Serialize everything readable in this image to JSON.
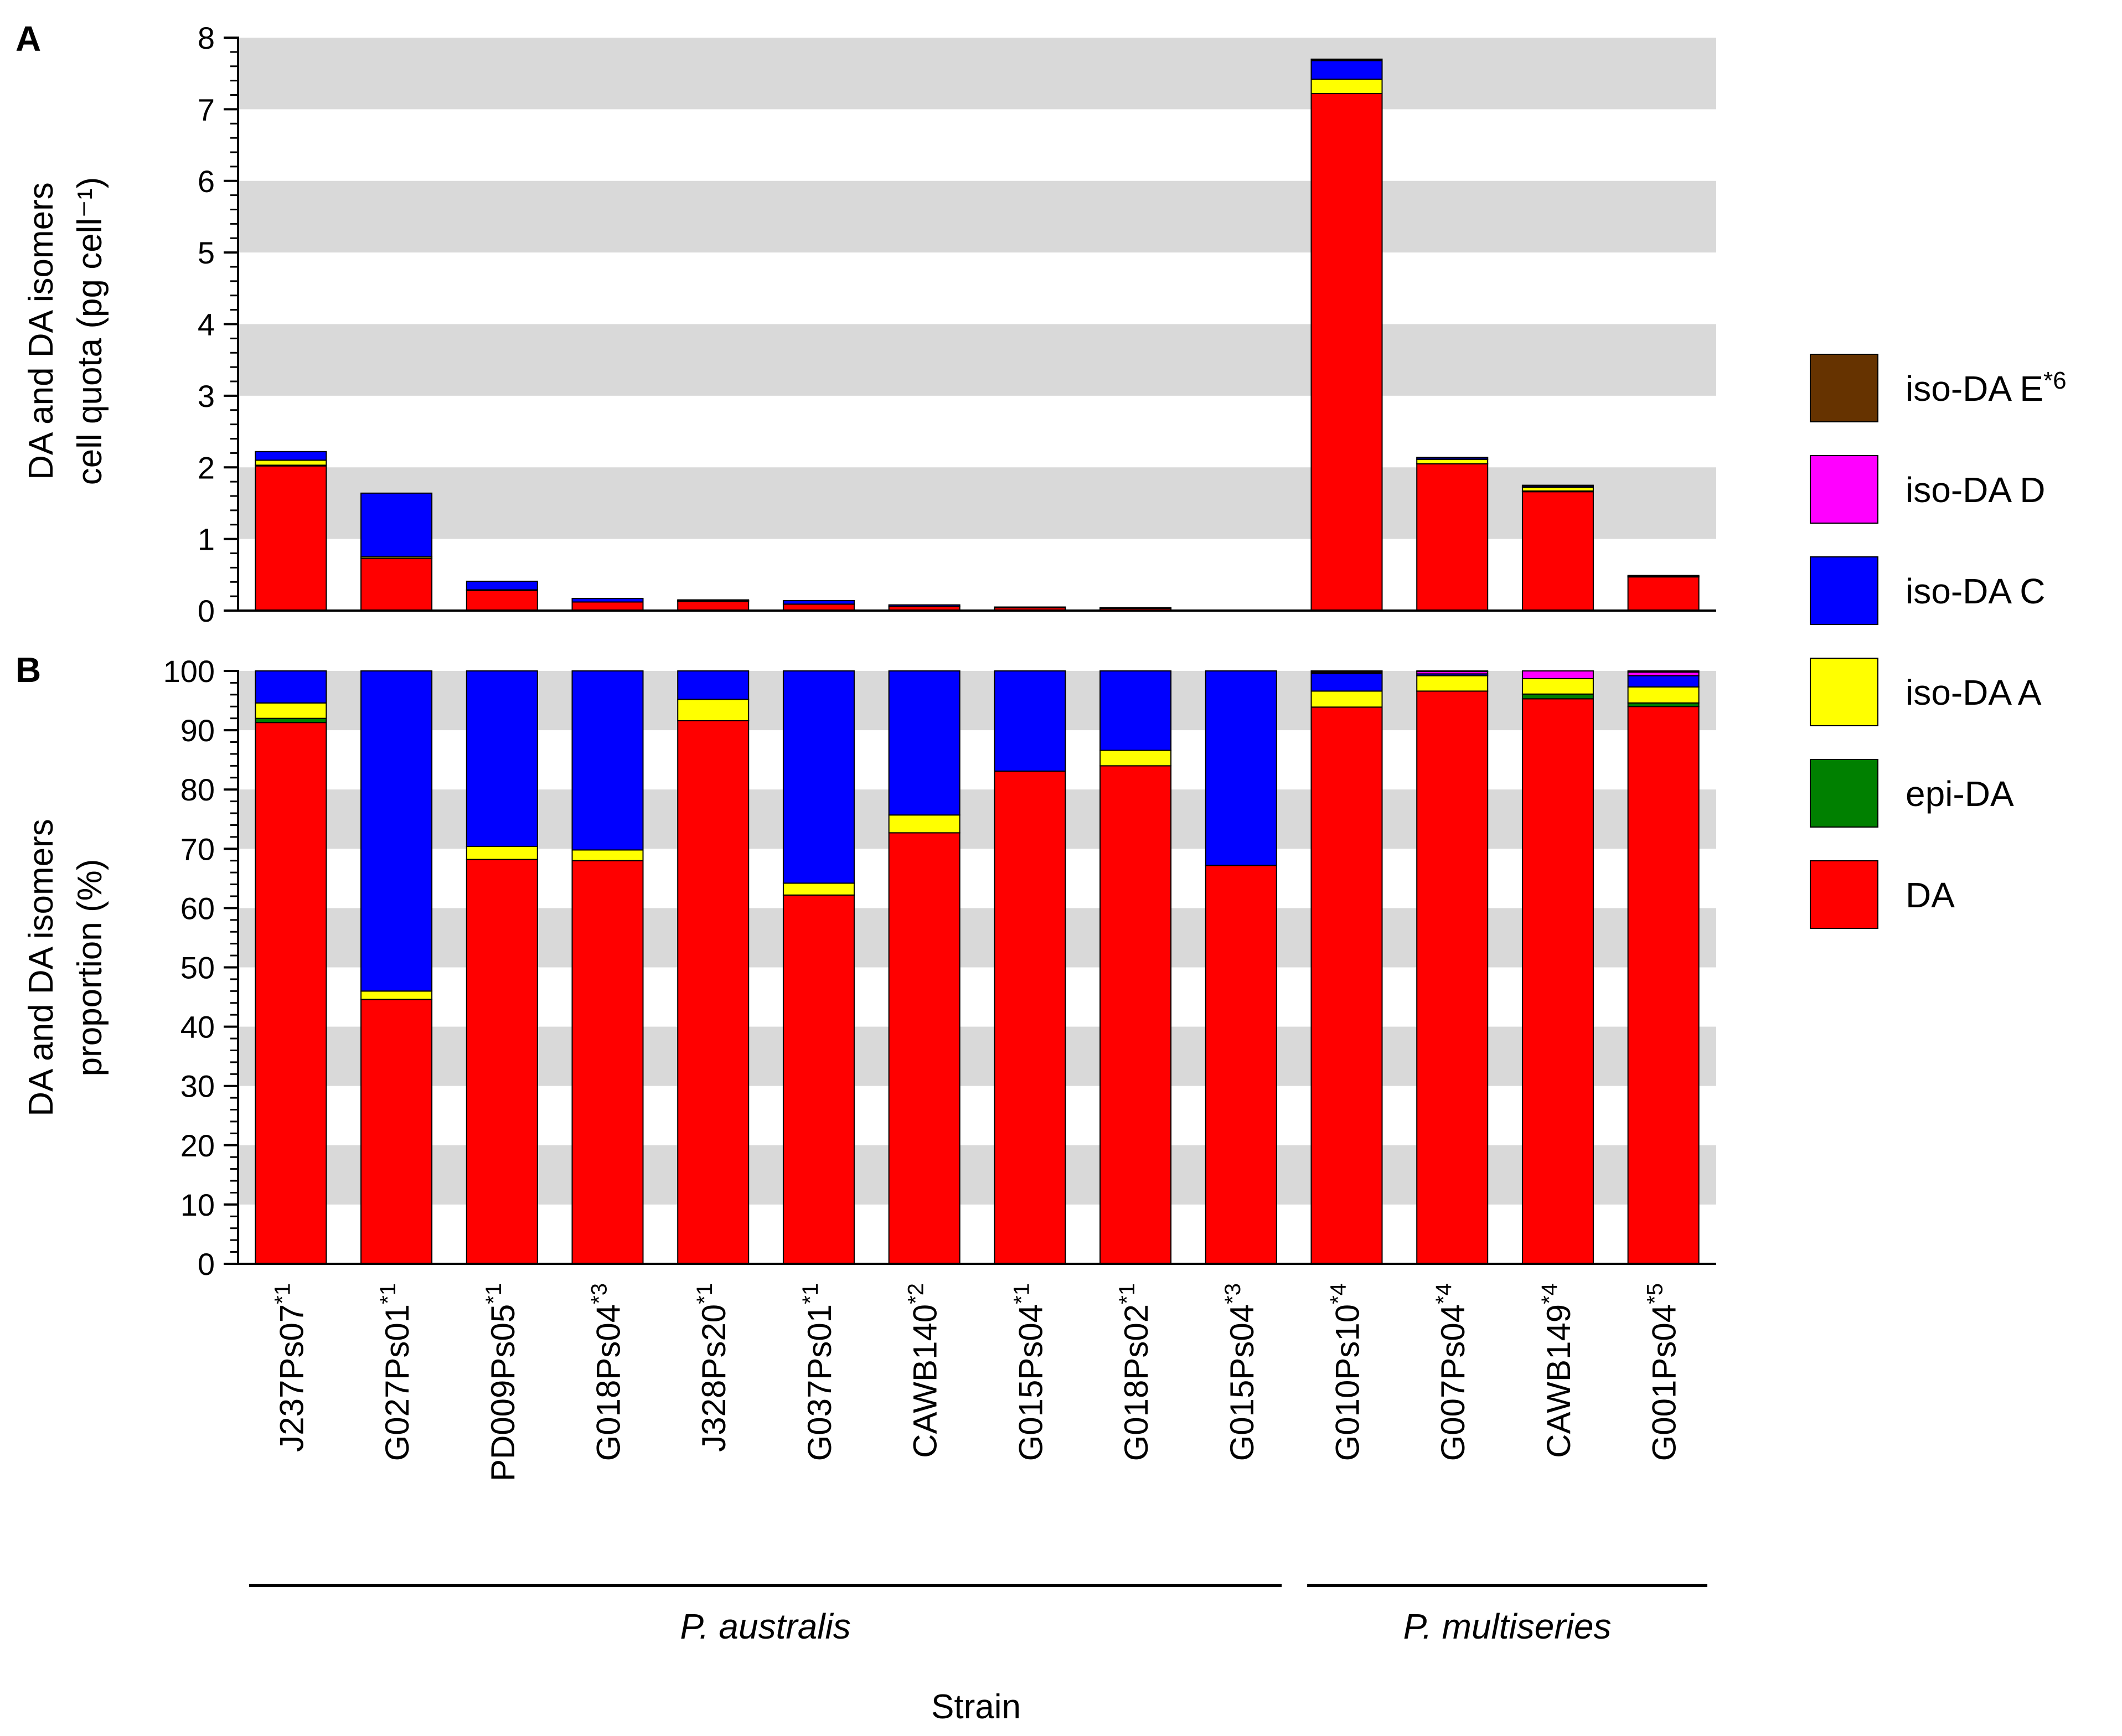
{
  "figure": {
    "panel_a_label": "A",
    "panel_b_label": "B",
    "xlabel": "Strain",
    "groups": [
      {
        "label": "P. australis",
        "from": 0,
        "to": 9
      },
      {
        "label": "P. multiseries",
        "from": 10,
        "to": 13
      }
    ]
  },
  "chart_data": [
    {
      "id": "A",
      "type": "bar",
      "stacked": true,
      "ylabel": [
        "DA and DA isomers",
        "cell quota (pg cell⁻¹)"
      ],
      "ylim": [
        0,
        8
      ],
      "yticks": [
        0,
        1,
        2,
        3,
        4,
        5,
        6,
        7,
        8
      ],
      "grid": "alternating horizontal bands",
      "categories": [
        "J237Ps07",
        "G027Ps01",
        "PD009Ps05",
        "G018Ps04",
        "J328Ps20",
        "G037Ps01",
        "CAWB140",
        "G015Ps04",
        "G018Ps02",
        "G015Ps04",
        "G010Ps10",
        "G007Ps04",
        "CAWB149",
        "G001Ps04"
      ],
      "series": [
        {
          "name": "DA",
          "color": "#ff0000",
          "values": [
            2.02,
            0.73,
            0.28,
            0.12,
            0.13,
            0.09,
            0.06,
            0.04,
            0.03,
            0.0,
            7.22,
            2.05,
            1.66,
            0.47
          ]
        },
        {
          "name": "epi-DA",
          "color": "#008000",
          "values": [
            0.01,
            0.0,
            0.0,
            0.0,
            0.0,
            0.0,
            0.0,
            0.0,
            0.0,
            0.0,
            0.0,
            0.0,
            0.01,
            0.0
          ]
        },
        {
          "name": "iso-DA A",
          "color": "#ffff00",
          "values": [
            0.07,
            0.02,
            0.01,
            0.0,
            0.01,
            0.0,
            0.0,
            0.0,
            0.0,
            0.0,
            0.2,
            0.06,
            0.05,
            0.01
          ]
        },
        {
          "name": "iso-DA C",
          "color": "#0000ff",
          "values": [
            0.12,
            0.89,
            0.12,
            0.05,
            0.01,
            0.05,
            0.02,
            0.01,
            0.01,
            0.0,
            0.26,
            0.02,
            0.02,
            0.01
          ]
        },
        {
          "name": "iso-DA D",
          "color": "#ff00ff",
          "values": [
            0.0,
            0.0,
            0.0,
            0.0,
            0.0,
            0.0,
            0.0,
            0.0,
            0.0,
            0.0,
            0.01,
            0.01,
            0.01,
            0.0
          ]
        },
        {
          "name": "iso-DA E*6",
          "color": "#663300",
          "values": [
            0.0,
            0.0,
            0.0,
            0.0,
            0.0,
            0.0,
            0.0,
            0.0,
            0.0,
            0.0,
            0.01,
            0.0,
            0.0,
            0.0
          ]
        }
      ]
    },
    {
      "id": "B",
      "type": "bar",
      "stacked": true,
      "ylabel": [
        "DA and DA isomers",
        "proportion (%)"
      ],
      "ylim": [
        0,
        100
      ],
      "yticks": [
        0,
        10,
        20,
        30,
        40,
        50,
        60,
        70,
        80,
        90,
        100
      ],
      "grid": "alternating horizontal bands",
      "categories": [
        "J237Ps07",
        "G027Ps01",
        "PD009Ps05",
        "G018Ps04",
        "J328Ps20",
        "G037Ps01",
        "CAWB140",
        "G015Ps04",
        "G018Ps02",
        "G015Ps04",
        "G010Ps10",
        "G007Ps04",
        "CAWB149",
        "G001Ps04"
      ],
      "category_superscripts": [
        "*1",
        "*1",
        "*1",
        "*3",
        "*1",
        "*1",
        "*2",
        "*1",
        "*1",
        "*3",
        "*4",
        "*4",
        "*4",
        "*5"
      ],
      "series": [
        {
          "name": "DA",
          "color": "#ff0000",
          "values": [
            91.3,
            44.6,
            68.2,
            68.0,
            91.6,
            62.2,
            72.7,
            83.1,
            84.0,
            67.2,
            93.9,
            96.6,
            95.3,
            94.0
          ]
        },
        {
          "name": "epi-DA",
          "color": "#008000",
          "values": [
            0.7,
            0.0,
            0.0,
            0.0,
            0.0,
            0.0,
            0.0,
            0.0,
            0.0,
            0.0,
            0.0,
            0.0,
            0.8,
            0.6
          ]
        },
        {
          "name": "iso-DA A",
          "color": "#ffff00",
          "values": [
            2.6,
            1.4,
            2.2,
            1.8,
            3.6,
            2.0,
            3.0,
            0.0,
            2.6,
            0.0,
            2.7,
            2.6,
            2.6,
            2.7
          ]
        },
        {
          "name": "iso-DA C",
          "color": "#0000ff",
          "values": [
            5.4,
            54.0,
            29.6,
            30.2,
            4.8,
            35.8,
            24.3,
            16.9,
            13.4,
            32.8,
            3.0,
            0.3,
            0.0,
            1.9
          ]
        },
        {
          "name": "iso-DA D",
          "color": "#ff00ff",
          "values": [
            0.0,
            0.0,
            0.0,
            0.0,
            0.0,
            0.0,
            0.0,
            0.0,
            0.0,
            0.0,
            0.2,
            0.4,
            1.3,
            0.6
          ]
        },
        {
          "name": "iso-DA E*6",
          "color": "#663300",
          "values": [
            0.0,
            0.0,
            0.0,
            0.0,
            0.0,
            0.0,
            0.0,
            0.0,
            0.0,
            0.0,
            0.2,
            0.1,
            0.0,
            0.2
          ]
        }
      ]
    }
  ],
  "legend": [
    {
      "label": "iso-DA E",
      "superscript": "*6",
      "color": "#663300"
    },
    {
      "label": "iso-DA D",
      "superscript": "",
      "color": "#ff00ff"
    },
    {
      "label": "iso-DA C",
      "superscript": "",
      "color": "#0000ff"
    },
    {
      "label": "iso-DA A",
      "superscript": "",
      "color": "#ffff00"
    },
    {
      "label": "epi-DA",
      "superscript": "",
      "color": "#008000"
    },
    {
      "label": "DA",
      "superscript": "",
      "color": "#ff0000"
    }
  ]
}
